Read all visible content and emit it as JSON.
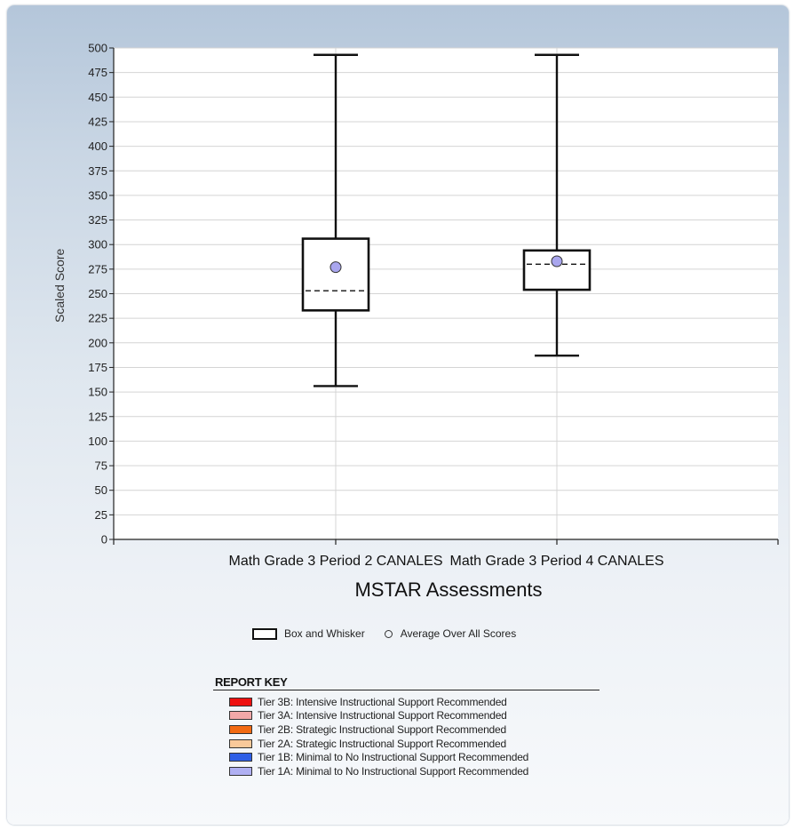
{
  "chart_data": {
    "type": "boxplot",
    "ylabel": "Scaled Score",
    "xlabel": "MSTAR Assessments",
    "ylim": [
      0,
      500
    ],
    "ytick_step": 25,
    "yticks": [
      "0",
      "25",
      "50",
      "75",
      "100",
      "125",
      "150",
      "175",
      "200",
      "225",
      "250",
      "275",
      "300",
      "325",
      "350",
      "375",
      "400",
      "425",
      "450",
      "475",
      "500"
    ],
    "categories": [
      "Math Grade 3 Period 2 CANALES",
      "Math Grade 3 Period 4 CANALES"
    ],
    "series": [
      {
        "name": "Box and Whisker",
        "boxes": [
          {
            "min": 156,
            "q1": 233,
            "median": 253,
            "q3": 306,
            "max": 493
          },
          {
            "min": 187,
            "q1": 254,
            "median": 280,
            "q3": 294,
            "max": 493
          }
        ]
      },
      {
        "name": "Average Over All Scores",
        "values": [
          277,
          283
        ]
      }
    ],
    "grid": true,
    "legend_position": "bottom-center"
  },
  "legend": {
    "box_label": "Box and Whisker",
    "average_label": "Average Over All Scores"
  },
  "report_key": {
    "title": "REPORT KEY",
    "items": [
      {
        "label": "Tier 3B: Intensive Instructional Support Recommended",
        "color": "#ee1111"
      },
      {
        "label": "Tier 3A: Intensive Instructional Support Recommended",
        "color": "#f2a8a8"
      },
      {
        "label": "Tier 2B: Strategic Instructional Support Recommended",
        "color": "#f26a12"
      },
      {
        "label": "Tier 2A: Strategic Instructional Support Recommended",
        "color": "#f9c99a"
      },
      {
        "label": "Tier 1B: Minimal to No Instructional Support Recommended",
        "color": "#2e5fe6"
      },
      {
        "label": "Tier 1A: Minimal to No Instructional Support Recommended",
        "color": "#b0b0f2"
      }
    ]
  },
  "colors": {
    "average_marker": "#a9a6ee",
    "plot_background": "#ffffff"
  }
}
